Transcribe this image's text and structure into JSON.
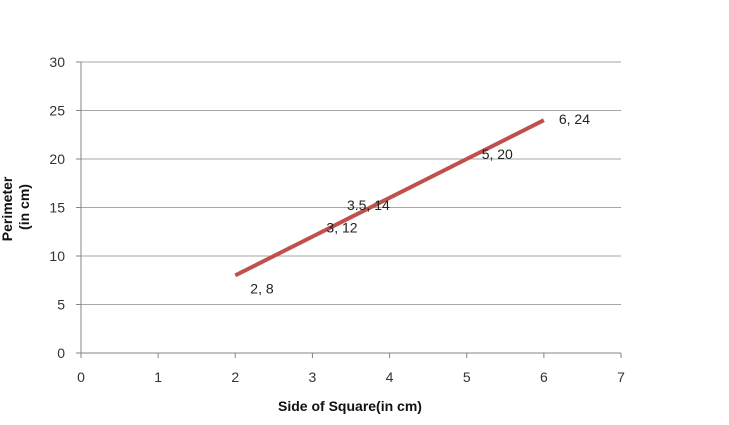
{
  "chart_data": {
    "type": "line",
    "title": "",
    "xlabel": "Side of Square(in cm)",
    "ylabel_lines": [
      "Perimeter",
      "(in cm)"
    ],
    "xlim": [
      0,
      7
    ],
    "ylim": [
      0,
      30
    ],
    "xticks": [
      0,
      1,
      2,
      3,
      4,
      5,
      6,
      7
    ],
    "yticks": [
      0,
      5,
      10,
      15,
      20,
      25,
      30
    ],
    "grid": {
      "horizontal": true,
      "vertical": false
    },
    "legend": "none",
    "series": [
      {
        "x": [
          2,
          3,
          3.5,
          5,
          6
        ],
        "y": [
          8,
          12,
          14,
          20,
          24
        ],
        "labels": [
          "2, 8",
          "3, 12",
          "3.5, 14",
          "5, 20",
          "6, 24"
        ],
        "color": "#C0504D"
      }
    ]
  }
}
